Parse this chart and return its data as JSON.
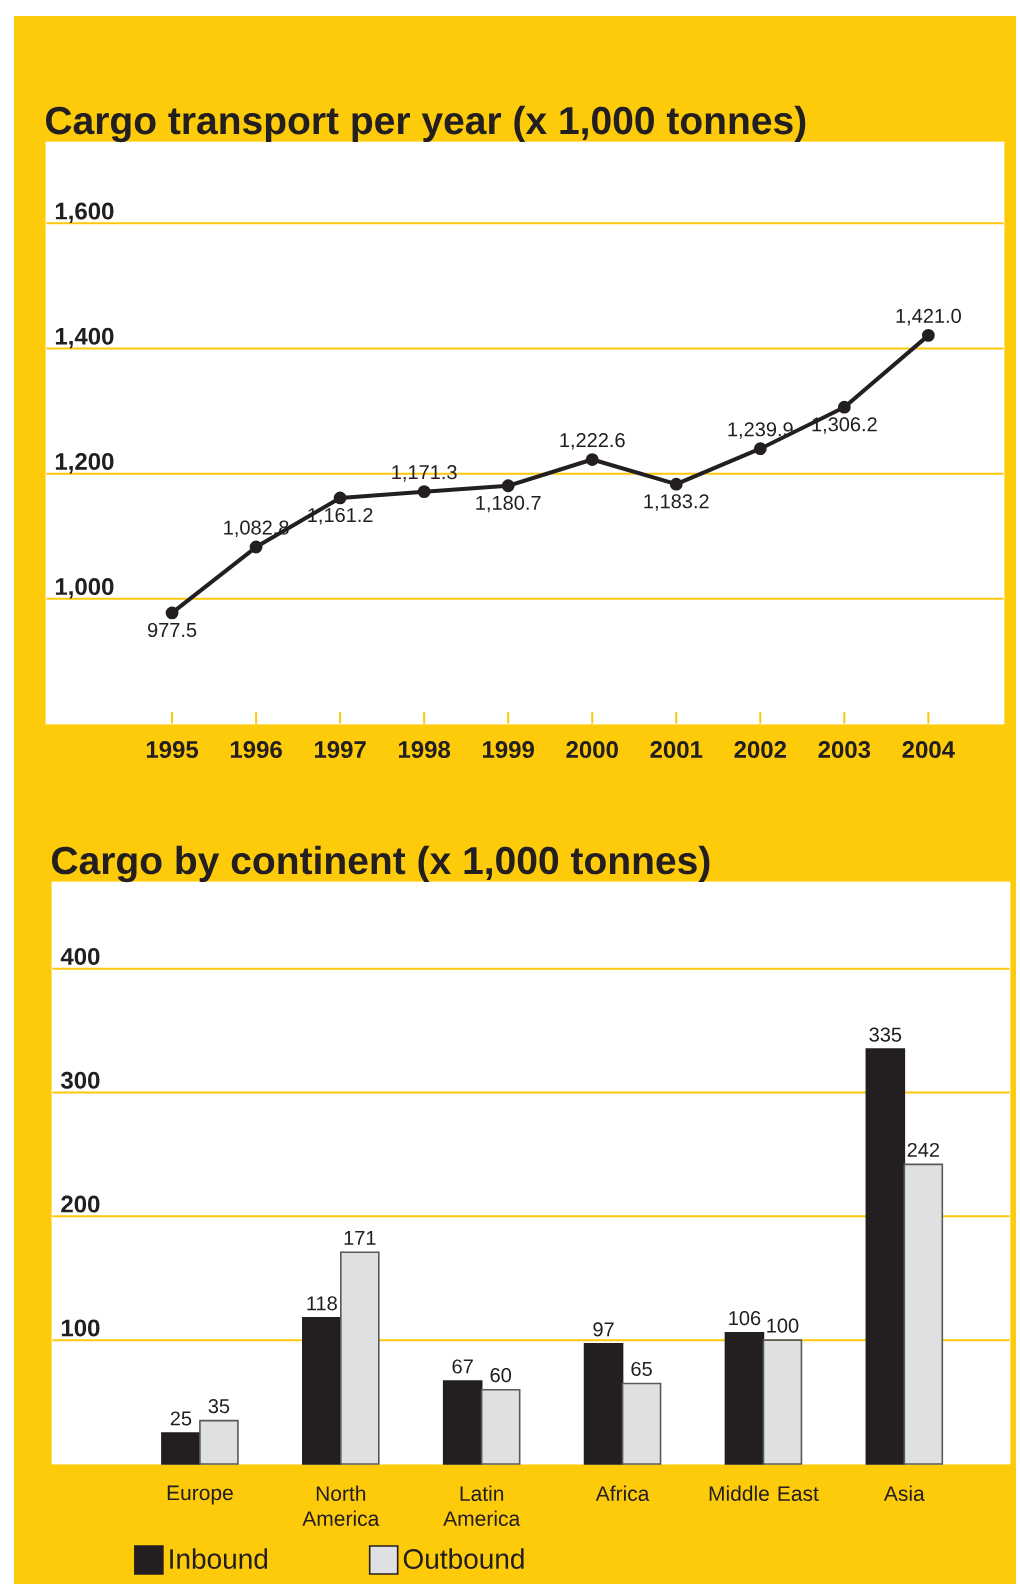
{
  "chart_data": [
    {
      "type": "line",
      "title": "Cargo transport per year (x 1,000 tonnes)",
      "x": [
        1995,
        1996,
        1997,
        1998,
        1999,
        2000,
        2001,
        2002,
        2003,
        2004
      ],
      "values": [
        977.5,
        1082.8,
        1161.2,
        1171.3,
        1180.7,
        1222.6,
        1183.2,
        1239.9,
        1306.2,
        1421.0
      ],
      "value_labels": [
        "977.5",
        "1,082.8",
        "1,161.2",
        "1,171.3",
        "1,180.7",
        "1,222.6",
        "1,183.2",
        "1,239.9",
        "1,306.2",
        "1,421.0"
      ],
      "color": "#231f20",
      "xlim": [
        1993.5,
        2004.9
      ],
      "xticks": [
        1995,
        1996,
        1997,
        1998,
        1999,
        2000,
        2001,
        2002,
        2003,
        2004
      ],
      "ylim": [
        800,
        1730
      ],
      "yticks": [
        {
          "value": 1000,
          "label": "1,000"
        },
        {
          "value": 1200,
          "label": "1,200"
        },
        {
          "value": 1400,
          "label": "1,400"
        },
        {
          "value": 1600,
          "label": "1,600"
        }
      ],
      "grid": "y",
      "marker": "circle",
      "line_style": "solid"
    },
    {
      "type": "bar",
      "title": "Cargo by continent (x 1,000 tonnes)",
      "categories": [
        "Europe",
        "North America",
        "Latin America",
        "Africa",
        "Middle East",
        "Asia"
      ],
      "series": [
        {
          "name": "Inbound",
          "color": "#231f20",
          "values": [
            25,
            118,
            67,
            97,
            106,
            335
          ]
        },
        {
          "name": "Outbound",
          "color": "#dfe0e2",
          "values": [
            35,
            171,
            60,
            65,
            100,
            242
          ]
        }
      ],
      "ylim": [
        0,
        470
      ],
      "yticks": [
        100,
        200,
        300,
        400
      ],
      "grid": "y",
      "legend": "bottom",
      "data_labels": true
    }
  ]
}
